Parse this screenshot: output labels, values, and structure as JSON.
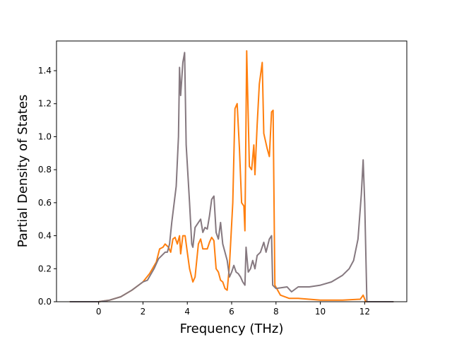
{
  "chart_data": {
    "type": "line",
    "title": "",
    "xlabel": "Frequency (THz)",
    "ylabel": "Partial Density of States",
    "xlim": [
      -1.9,
      13.9
    ],
    "ylim": [
      0,
      1.58
    ],
    "xticks": [
      0,
      2,
      4,
      6,
      8,
      10,
      12
    ],
    "yticks": [
      0.0,
      0.2,
      0.4,
      0.6,
      0.8,
      1.0,
      1.2,
      1.4
    ],
    "xtick_labels": [
      "0",
      "2",
      "4",
      "6",
      "8",
      "10",
      "12"
    ],
    "ytick_labels": [
      "0.0",
      "0.2",
      "0.4",
      "0.6",
      "0.8",
      "1.0",
      "1.2",
      "1.4"
    ],
    "grid": false,
    "series": [
      {
        "color": "#ff7f0e",
        "x": [
          -1.3,
          0,
          0.5,
          1,
          1.5,
          2,
          2.3,
          2.6,
          2.75,
          2.9,
          3.0,
          3.15,
          3.25,
          3.35,
          3.45,
          3.55,
          3.65,
          3.7,
          3.8,
          3.9,
          4.0,
          4.1,
          4.25,
          4.35,
          4.5,
          4.6,
          4.7,
          4.9,
          5.0,
          5.1,
          5.2,
          5.3,
          5.4,
          5.5,
          5.6,
          5.7,
          5.8,
          5.9,
          6.05,
          6.15,
          6.25,
          6.35,
          6.45,
          6.55,
          6.6,
          6.68,
          6.8,
          6.9,
          7.0,
          7.05,
          7.15,
          7.25,
          7.38,
          7.45,
          7.6,
          7.7,
          7.8,
          7.87,
          7.95,
          8.2,
          8.6,
          9,
          10,
          11,
          11.8,
          11.93,
          12.05,
          13.3
        ],
        "y": [
          0,
          0,
          0.01,
          0.03,
          0.07,
          0.12,
          0.17,
          0.24,
          0.32,
          0.33,
          0.35,
          0.33,
          0.3,
          0.38,
          0.39,
          0.35,
          0.4,
          0.29,
          0.4,
          0.4,
          0.3,
          0.2,
          0.12,
          0.15,
          0.35,
          0.38,
          0.32,
          0.32,
          0.36,
          0.39,
          0.37,
          0.2,
          0.18,
          0.13,
          0.12,
          0.08,
          0.07,
          0.22,
          0.6,
          1.17,
          1.2,
          0.93,
          0.6,
          0.58,
          0.43,
          1.52,
          0.82,
          0.8,
          0.95,
          0.77,
          1.07,
          1.32,
          1.45,
          1.02,
          0.93,
          0.88,
          1.15,
          1.16,
          0.1,
          0.04,
          0.02,
          0.02,
          0.01,
          0.01,
          0.015,
          0.04,
          0,
          0
        ]
      },
      {
        "color": "#85787f",
        "x": [
          -1.3,
          0,
          0.5,
          1,
          1.5,
          2,
          2.2,
          2.5,
          2.7,
          3.0,
          3.1,
          3.2,
          3.3,
          3.5,
          3.6,
          3.65,
          3.7,
          3.8,
          3.88,
          3.95,
          4.1,
          4.2,
          4.25,
          4.35,
          4.5,
          4.6,
          4.7,
          4.8,
          4.9,
          5.0,
          5.1,
          5.2,
          5.3,
          5.4,
          5.5,
          5.6,
          5.8,
          5.9,
          6.0,
          6.1,
          6.2,
          6.3,
          6.4,
          6.5,
          6.6,
          6.65,
          6.75,
          6.85,
          6.95,
          7.05,
          7.15,
          7.3,
          7.45,
          7.55,
          7.7,
          7.8,
          7.85,
          8.0,
          8.5,
          8.7,
          9.0,
          9.5,
          10,
          10.5,
          11,
          11.3,
          11.5,
          11.7,
          11.85,
          11.93,
          12.0,
          12.1,
          13.3
        ],
        "y": [
          0,
          0,
          0.01,
          0.03,
          0.07,
          0.12,
          0.13,
          0.2,
          0.26,
          0.3,
          0.3,
          0.35,
          0.48,
          0.7,
          1.0,
          1.42,
          1.25,
          1.45,
          1.51,
          0.95,
          0.6,
          0.35,
          0.33,
          0.45,
          0.48,
          0.5,
          0.42,
          0.45,
          0.44,
          0.52,
          0.62,
          0.64,
          0.42,
          0.38,
          0.48,
          0.35,
          0.25,
          0.15,
          0.18,
          0.22,
          0.18,
          0.17,
          0.15,
          0.12,
          0.1,
          0.33,
          0.18,
          0.2,
          0.25,
          0.2,
          0.28,
          0.3,
          0.36,
          0.3,
          0.38,
          0.4,
          0.1,
          0.08,
          0.09,
          0.06,
          0.09,
          0.09,
          0.1,
          0.12,
          0.16,
          0.2,
          0.25,
          0.38,
          0.65,
          0.86,
          0.6,
          0,
          0
        ]
      }
    ]
  }
}
